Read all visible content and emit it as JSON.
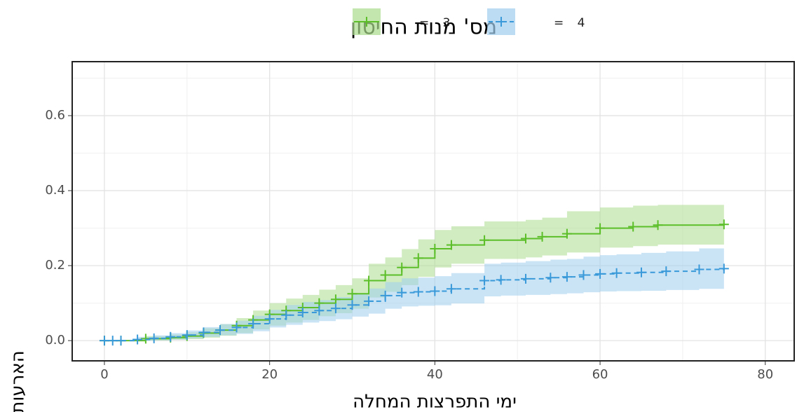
{
  "chart_data": {
    "type": "step",
    "legend_title": "מס' מנות החיסון",
    "xlabel": "ימי התפרצות המחלה",
    "ylabel": "הארעות",
    "xlim": [
      -3.9,
      83.5
    ],
    "ylim": [
      -0.054,
      0.744
    ],
    "xticks": [
      0,
      20,
      40,
      60,
      80
    ],
    "yticks": [
      {
        "value": 0,
        "label": "0.0"
      },
      0.2,
      0.4,
      0.6
    ],
    "x_minor_gridlines": [
      10,
      30,
      50,
      70
    ],
    "y_minor_gridlines": [
      0.1,
      0.3,
      0.5,
      0.7
    ],
    "grid": true,
    "legend": "top",
    "series": [
      {
        "name": "= 3",
        "color": "#5cbf2a",
        "band_color": "#a9dc8c",
        "dash": false,
        "x": [
          0,
          2,
          5,
          8,
          10,
          12,
          14,
          16,
          18,
          20,
          22,
          24,
          26,
          28,
          30,
          32,
          34,
          36,
          38,
          40,
          42,
          46,
          51,
          53,
          56,
          60,
          64,
          67,
          75
        ],
        "values": [
          0,
          0,
          0.005,
          0.008,
          0.012,
          0.02,
          0.028,
          0.04,
          0.055,
          0.07,
          0.08,
          0.088,
          0.1,
          0.11,
          0.125,
          0.16,
          0.175,
          0.195,
          0.22,
          0.245,
          0.255,
          0.268,
          0.272,
          0.277,
          0.285,
          0.3,
          0.304,
          0.308,
          0.31
        ],
        "lower": [
          0,
          0,
          0,
          0.002,
          0.004,
          0.008,
          0.013,
          0.02,
          0.03,
          0.04,
          0.048,
          0.055,
          0.065,
          0.073,
          0.085,
          0.115,
          0.13,
          0.148,
          0.17,
          0.195,
          0.205,
          0.218,
          0.222,
          0.227,
          0.235,
          0.248,
          0.252,
          0.256,
          0.258
        ],
        "upper": [
          0,
          0,
          0.012,
          0.016,
          0.022,
          0.033,
          0.044,
          0.06,
          0.08,
          0.1,
          0.112,
          0.122,
          0.136,
          0.148,
          0.166,
          0.205,
          0.222,
          0.244,
          0.27,
          0.295,
          0.305,
          0.318,
          0.322,
          0.328,
          0.345,
          0.355,
          0.36,
          0.362,
          0.365
        ]
      },
      {
        "name": "= 4",
        "color": "#3a9ad9",
        "band_color": "#9fcdef",
        "dash": true,
        "x": [
          0,
          1,
          2,
          4,
          6,
          8,
          10,
          12,
          14,
          16,
          18,
          20,
          22,
          24,
          26,
          28,
          30,
          32,
          34,
          36,
          38,
          40,
          42,
          46,
          48,
          51,
          54,
          56,
          58,
          60,
          62,
          65,
          68,
          72,
          75
        ],
        "values": [
          0,
          0,
          0,
          0.003,
          0.006,
          0.01,
          0.015,
          0.022,
          0.028,
          0.035,
          0.045,
          0.058,
          0.068,
          0.075,
          0.08,
          0.086,
          0.095,
          0.105,
          0.12,
          0.128,
          0.13,
          0.132,
          0.138,
          0.16,
          0.162,
          0.165,
          0.168,
          0.17,
          0.175,
          0.178,
          0.18,
          0.182,
          0.185,
          0.19,
          0.192
        ],
        "lower": [
          0,
          0,
          0,
          0,
          0.001,
          0.003,
          0.006,
          0.01,
          0.014,
          0.018,
          0.025,
          0.035,
          0.042,
          0.048,
          0.052,
          0.057,
          0.064,
          0.072,
          0.085,
          0.091,
          0.093,
          0.094,
          0.099,
          0.118,
          0.12,
          0.122,
          0.124,
          0.126,
          0.129,
          0.131,
          0.132,
          0.133,
          0.135,
          0.138,
          0.14
        ],
        "upper": [
          0,
          0,
          0,
          0.01,
          0.014,
          0.02,
          0.027,
          0.036,
          0.044,
          0.053,
          0.066,
          0.082,
          0.095,
          0.103,
          0.108,
          0.116,
          0.126,
          0.139,
          0.156,
          0.166,
          0.168,
          0.172,
          0.18,
          0.205,
          0.208,
          0.212,
          0.216,
          0.218,
          0.224,
          0.228,
          0.23,
          0.234,
          0.238,
          0.246,
          0.255
        ]
      }
    ]
  }
}
